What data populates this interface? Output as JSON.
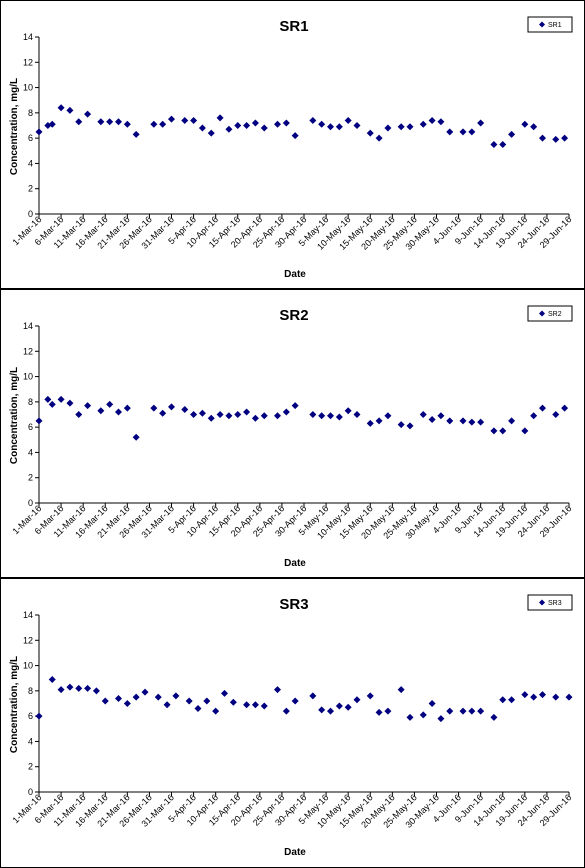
{
  "chart_data": [
    {
      "type": "scatter",
      "title": "SR1",
      "xlabel": "Date",
      "ylabel": "Concentration, mg/L",
      "ylim": [
        0,
        14
      ],
      "y_ticks": [
        0,
        2,
        4,
        6,
        8,
        10,
        12,
        14
      ],
      "x_ticks": [
        "1-Mar-16",
        "6-Mar-16",
        "11-Mar-16",
        "16-Mar-16",
        "21-Mar-16",
        "26-Mar-16",
        "31-Mar-16",
        "5-Apr-16",
        "10-Apr-16",
        "15-Apr-16",
        "20-Apr-16",
        "25-Apr-16",
        "30-Apr-16",
        "5-May-16",
        "10-May-16",
        "15-May-16",
        "20-May-16",
        "25-May-16",
        "30-May-16",
        "4-Jun-16",
        "9-Jun-16",
        "14-Jun-16",
        "19-Jun-16",
        "24-Jun-16",
        "29-Jun-16"
      ],
      "grid": false,
      "legend": {
        "position": "top-right",
        "entries": [
          "SR1"
        ]
      },
      "marker_color": "#000080",
      "series": [
        {
          "name": "SR1",
          "x": [
            "1-Mar-16",
            "3-Mar-16",
            "4-Mar-16",
            "6-Mar-16",
            "8-Mar-16",
            "10-Mar-16",
            "12-Mar-16",
            "15-Mar-16",
            "17-Mar-16",
            "19-Mar-16",
            "21-Mar-16",
            "23-Mar-16",
            "27-Mar-16",
            "29-Mar-16",
            "31-Mar-16",
            "3-Apr-16",
            "5-Apr-16",
            "7-Apr-16",
            "9-Apr-16",
            "11-Apr-16",
            "13-Apr-16",
            "15-Apr-16",
            "17-Apr-16",
            "19-Apr-16",
            "21-Apr-16",
            "24-Apr-16",
            "26-Apr-16",
            "28-Apr-16",
            "2-May-16",
            "4-May-16",
            "6-May-16",
            "8-May-16",
            "10-May-16",
            "12-May-16",
            "15-May-16",
            "17-May-16",
            "19-May-16",
            "22-May-16",
            "24-May-16",
            "27-May-16",
            "29-May-16",
            "31-May-16",
            "2-Jun-16",
            "5-Jun-16",
            "7-Jun-16",
            "9-Jun-16",
            "12-Jun-16",
            "14-Jun-16",
            "16-Jun-16",
            "19-Jun-16",
            "21-Jun-16",
            "23-Jun-16",
            "26-Jun-16",
            "28-Jun-16"
          ],
          "y": [
            6.5,
            7.0,
            7.1,
            8.4,
            8.2,
            7.3,
            7.9,
            7.3,
            7.3,
            7.3,
            7.1,
            6.3,
            7.1,
            7.1,
            7.5,
            7.4,
            7.4,
            6.8,
            6.4,
            7.6,
            6.7,
            7.0,
            7.0,
            7.2,
            6.8,
            7.1,
            7.2,
            6.2,
            7.4,
            7.1,
            6.9,
            6.9,
            7.4,
            7.0,
            6.4,
            6.0,
            6.8,
            6.9,
            6.9,
            7.1,
            7.4,
            7.3,
            6.5,
            6.5,
            6.5,
            7.2,
            5.5,
            5.5,
            6.3,
            7.1,
            6.9,
            6.0,
            5.9,
            6.0
          ]
        }
      ]
    },
    {
      "type": "scatter",
      "title": "SR2",
      "xlabel": "Date",
      "ylabel": "Concentration, mg/L",
      "ylim": [
        0,
        14
      ],
      "y_ticks": [
        0,
        2,
        4,
        6,
        8,
        10,
        12,
        14
      ],
      "x_ticks": [
        "1-Mar-16",
        "6-Mar-16",
        "11-Mar-16",
        "16-Mar-16",
        "21-Mar-16",
        "26-Mar-16",
        "31-Mar-16",
        "5-Apr-16",
        "10-Apr-16",
        "15-Apr-16",
        "20-Apr-16",
        "25-Apr-16",
        "30-Apr-16",
        "5-May-16",
        "10-May-16",
        "15-May-16",
        "20-May-16",
        "25-May-16",
        "30-May-16",
        "4-Jun-16",
        "9-Jun-16",
        "14-Jun-16",
        "19-Jun-16",
        "24-Jun-16",
        "29-Jun-16"
      ],
      "grid": false,
      "legend": {
        "position": "top-right",
        "entries": [
          "SR2"
        ]
      },
      "marker_color": "#000080",
      "series": [
        {
          "name": "SR2",
          "x": [
            "1-Mar-16",
            "3-Mar-16",
            "4-Mar-16",
            "6-Mar-16",
            "8-Mar-16",
            "10-Mar-16",
            "12-Mar-16",
            "15-Mar-16",
            "17-Mar-16",
            "19-Mar-16",
            "21-Mar-16",
            "23-Mar-16",
            "27-Mar-16",
            "29-Mar-16",
            "31-Mar-16",
            "3-Apr-16",
            "5-Apr-16",
            "7-Apr-16",
            "9-Apr-16",
            "11-Apr-16",
            "13-Apr-16",
            "15-Apr-16",
            "17-Apr-16",
            "19-Apr-16",
            "21-Apr-16",
            "24-Apr-16",
            "26-Apr-16",
            "28-Apr-16",
            "2-May-16",
            "4-May-16",
            "6-May-16",
            "8-May-16",
            "10-May-16",
            "12-May-16",
            "15-May-16",
            "17-May-16",
            "19-May-16",
            "22-May-16",
            "24-May-16",
            "27-May-16",
            "29-May-16",
            "31-May-16",
            "2-Jun-16",
            "5-Jun-16",
            "7-Jun-16",
            "9-Jun-16",
            "12-Jun-16",
            "14-Jun-16",
            "16-Jun-16",
            "19-Jun-16",
            "21-Jun-16",
            "23-Jun-16",
            "26-Jun-16",
            "28-Jun-16"
          ],
          "y": [
            6.5,
            8.2,
            7.8,
            8.2,
            7.9,
            7.0,
            7.7,
            7.3,
            7.8,
            7.2,
            7.5,
            5.2,
            7.5,
            7.1,
            7.6,
            7.4,
            7.0,
            7.1,
            6.7,
            7.0,
            6.9,
            7.0,
            7.2,
            6.7,
            6.9,
            6.9,
            7.2,
            7.7,
            7.0,
            6.9,
            6.9,
            6.8,
            7.3,
            7.0,
            6.3,
            6.5,
            6.9,
            6.2,
            6.1,
            7.0,
            6.6,
            6.9,
            6.5,
            6.5,
            6.4,
            6.4,
            5.7,
            5.7,
            6.5,
            5.7,
            6.9,
            7.5,
            7.0,
            7.5
          ]
        }
      ]
    },
    {
      "type": "scatter",
      "title": "SR3",
      "xlabel": "Date",
      "ylabel": "Concentration, mg/L",
      "ylim": [
        0,
        14
      ],
      "y_ticks": [
        0,
        2,
        4,
        6,
        8,
        10,
        12,
        14
      ],
      "x_ticks": [
        "1-Mar-16",
        "6-Mar-16",
        "11-Mar-16",
        "16-Mar-16",
        "21-Mar-16",
        "26-Mar-16",
        "31-Mar-16",
        "5-Apr-16",
        "10-Apr-16",
        "15-Apr-16",
        "20-Apr-16",
        "25-Apr-16",
        "30-Apr-16",
        "5-May-16",
        "10-May-16",
        "15-May-16",
        "20-May-16",
        "25-May-16",
        "30-May-16",
        "4-Jun-16",
        "9-Jun-16",
        "14-Jun-16",
        "19-Jun-16",
        "24-Jun-16",
        "29-Jun-16"
      ],
      "grid": false,
      "legend": {
        "position": "top-right",
        "entries": [
          "SR3"
        ]
      },
      "marker_color": "#000080",
      "series": [
        {
          "name": "SR3",
          "x": [
            "1-Mar-16",
            "4-Mar-16",
            "6-Mar-16",
            "8-Mar-16",
            "10-Mar-16",
            "12-Mar-16",
            "14-Mar-16",
            "16-Mar-16",
            "19-Mar-16",
            "21-Mar-16",
            "23-Mar-16",
            "25-Mar-16",
            "28-Mar-16",
            "30-Mar-16",
            "1-Apr-16",
            "4-Apr-16",
            "6-Apr-16",
            "8-Apr-16",
            "10-Apr-16",
            "12-Apr-16",
            "14-Apr-16",
            "17-Apr-16",
            "19-Apr-16",
            "21-Apr-16",
            "24-Apr-16",
            "26-Apr-16",
            "28-Apr-16",
            "2-May-16",
            "4-May-16",
            "6-May-16",
            "8-May-16",
            "10-May-16",
            "12-May-16",
            "15-May-16",
            "17-May-16",
            "19-May-16",
            "22-May-16",
            "24-May-16",
            "27-May-16",
            "29-May-16",
            "31-May-16",
            "2-Jun-16",
            "5-Jun-16",
            "7-Jun-16",
            "9-Jun-16",
            "12-Jun-16",
            "14-Jun-16",
            "16-Jun-16",
            "19-Jun-16",
            "21-Jun-16",
            "23-Jun-16",
            "26-Jun-16",
            "29-Jun-16"
          ],
          "y": [
            6.0,
            8.9,
            8.1,
            8.3,
            8.2,
            8.2,
            8.0,
            7.2,
            7.4,
            7.0,
            7.5,
            7.9,
            7.5,
            6.9,
            7.6,
            7.2,
            6.6,
            7.2,
            6.4,
            7.8,
            7.1,
            6.9,
            6.9,
            6.8,
            8.1,
            6.4,
            7.2,
            7.6,
            6.5,
            6.4,
            6.8,
            6.7,
            7.3,
            7.6,
            6.3,
            6.4,
            8.1,
            5.9,
            6.1,
            7.0,
            5.8,
            6.4,
            6.4,
            6.4,
            6.4,
            5.9,
            7.3,
            7.3,
            7.7,
            7.5,
            7.7,
            7.5,
            7.5
          ]
        }
      ]
    }
  ]
}
